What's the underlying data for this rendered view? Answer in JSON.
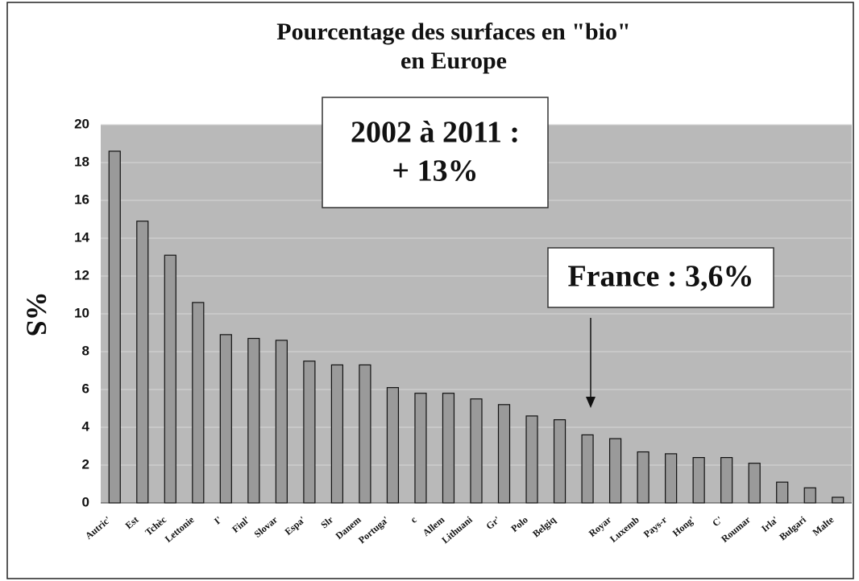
{
  "chart_data": {
    "type": "bar",
    "title": [
      "Pourcentage des surfaces en \"bio\"",
      "en Europe"
    ],
    "y_label": "%S",
    "annotations": [
      "2002 à 2011 :",
      "+ 13%",
      "France : 3,6%"
    ],
    "categories": [
      "Autric'",
      "Est",
      "Tchèc",
      "Lettonie",
      "I'",
      "Finl'",
      "Slovar",
      "Espa'",
      "Slr",
      "Danem",
      "Portuga'",
      "c",
      "Allem",
      "Lithuani",
      "Gr'",
      "Polo",
      "Belgiq",
      null,
      "Royar",
      "Luxemb",
      "Pays-r",
      "Hong'",
      "C'",
      "Roumar",
      "Irla'",
      "Bulgari",
      "Malte"
    ],
    "values": [
      18.6,
      14.9,
      13.1,
      10.6,
      8.9,
      8.7,
      8.6,
      7.5,
      7.3,
      7.3,
      6.1,
      5.8,
      5.8,
      5.5,
      5.2,
      4.6,
      4.4,
      3.6,
      3.4,
      2.7,
      2.6,
      2.4,
      2.4,
      2.1,
      1.1,
      0.8,
      0.3
    ],
    "color": "#9a9a9a",
    "ylim": [
      0,
      20
    ],
    "yticks": [
      0,
      2,
      4,
      6,
      8,
      10,
      12,
      14,
      16,
      18,
      20
    ],
    "grid": true
  }
}
